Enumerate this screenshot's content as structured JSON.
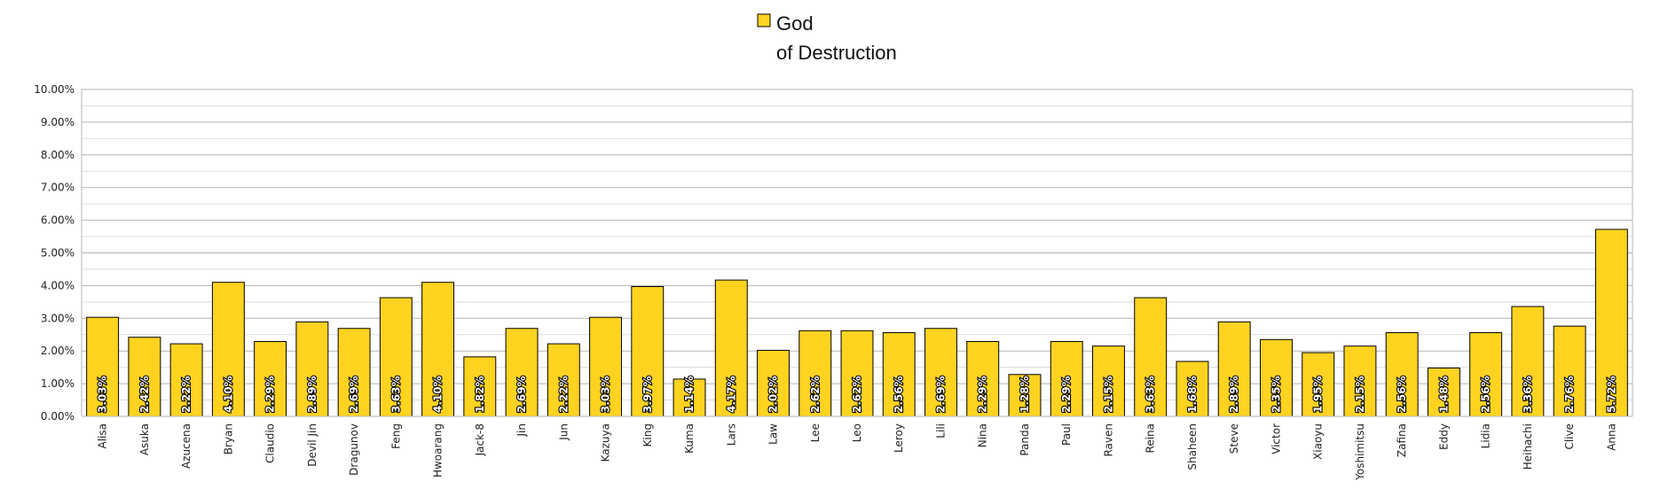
{
  "chart_data": {
    "type": "bar",
    "legend": {
      "placement": "top-center",
      "series_name_lines": [
        "God",
        "of Destruction"
      ]
    },
    "series": [
      {
        "name": "God of Destruction",
        "color": "#FFD320",
        "values": [
          3.03,
          2.42,
          2.22,
          4.1,
          2.29,
          2.89,
          2.69,
          3.63,
          4.1,
          1.82,
          2.69,
          2.22,
          3.03,
          3.97,
          1.14,
          4.17,
          2.02,
          2.62,
          2.62,
          2.56,
          2.69,
          2.29,
          1.28,
          2.29,
          2.15,
          3.63,
          1.68,
          2.89,
          2.35,
          1.95,
          2.15,
          2.56,
          1.48,
          2.56,
          3.36,
          2.76,
          5.72
        ]
      }
    ],
    "value_labels": [
      "3.03%",
      "2.42%",
      "2.22%",
      "4.10%",
      "2.29%",
      "2.89%",
      "2.69%",
      "3.63%",
      "4.10%",
      "1.82%",
      "2.69%",
      "2.22%",
      "3.03%",
      "3.97%",
      "1.14%",
      "4.17%",
      "2.02%",
      "2.62%",
      "2.62%",
      "2.56%",
      "2.69%",
      "2.29%",
      "1.28%",
      "2.29%",
      "2.15%",
      "3.63%",
      "1.68%",
      "2.89%",
      "2.35%",
      "1.95%",
      "2.15%",
      "2.56%",
      "1.48%",
      "2.56%",
      "3.36%",
      "2.76%",
      "5.72%"
    ],
    "categories": [
      "Alisa",
      "Asuka",
      "Azucena",
      "Bryan",
      "Claudio",
      "Devil Jin",
      "Dragunov",
      "Feng",
      "Hwoarang",
      "Jack-8",
      "Jin",
      "Jun",
      "Kazuya",
      "King",
      "Kuma",
      "Lars",
      "Law",
      "Lee",
      "Leo",
      "Leroy",
      "Lili",
      "Nina",
      "Panda",
      "Paul",
      "Raven",
      "Reina",
      "Shaheen",
      "Steve",
      "Victor",
      "Xiaoyu",
      "Yoshimitsu",
      "Zafina",
      "Eddy",
      "Lidia",
      "Heihachi",
      "Clive",
      "Anna"
    ],
    "ylim": [
      0,
      10
    ],
    "y_ticks": [
      0,
      1,
      2,
      3,
      4,
      5,
      6,
      7,
      8,
      9,
      10
    ],
    "y_tick_labels": [
      "0.00%",
      "1.00%",
      "2.00%",
      "3.00%",
      "4.00%",
      "5.00%",
      "6.00%",
      "7.00%",
      "8.00%",
      "9.00%",
      "10.00%"
    ],
    "grid": true,
    "title": "",
    "xlabel": "",
    "ylabel": ""
  }
}
